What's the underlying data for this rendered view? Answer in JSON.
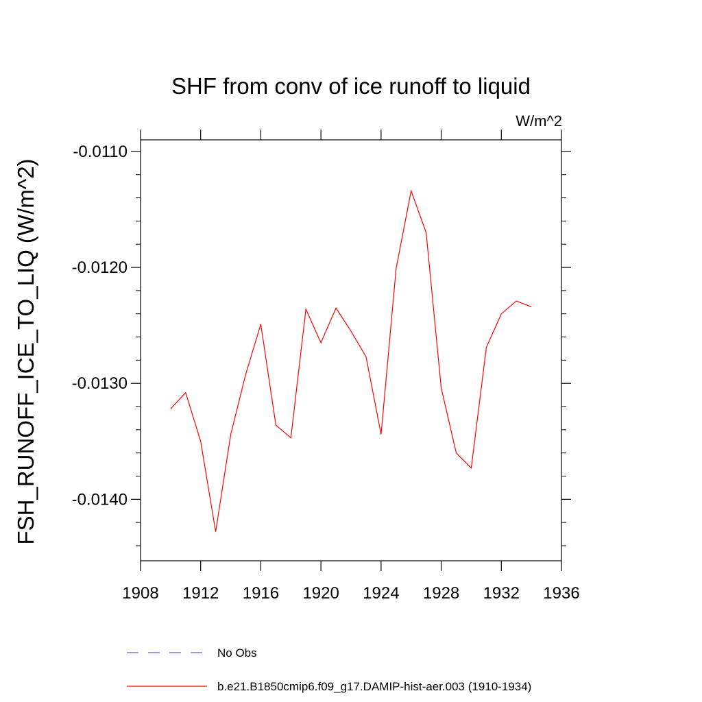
{
  "chart_data": {
    "type": "line",
    "title": "SHF from conv of ice runoff to liquid",
    "units_label": "W/m^2",
    "ylabel": "FSH_RUNOFF_ICE_TO_LIQ  (W/m^2)",
    "xlabel": "",
    "xlim": [
      1908,
      1936
    ],
    "ylim": [
      -0.01453,
      -0.0109
    ],
    "x_ticks": [
      1908,
      1912,
      1916,
      1920,
      1924,
      1928,
      1932,
      1936
    ],
    "x_tick_labels": [
      "1908",
      "1912",
      "1916",
      "1920",
      "1924",
      "1928",
      "1932",
      "1936"
    ],
    "y_ticks": [
      -0.011,
      -0.012,
      -0.013,
      -0.014
    ],
    "y_tick_labels": [
      "-0.0110",
      "-0.0120",
      "-0.0130",
      "-0.0140"
    ],
    "grid": false,
    "legend_position": "bottom",
    "series": [
      {
        "name": "b.e21.B1850cmip6.f09_g17.DAMIP-hist-aer.003 (1910-1934)",
        "color": "#ff0000",
        "style": "solid",
        "x": [
          1910,
          1911,
          1912,
          1913,
          1914,
          1915,
          1916,
          1917,
          1918,
          1919,
          1920,
          1921,
          1922,
          1923,
          1924,
          1925,
          1926,
          1927,
          1928,
          1929,
          1930,
          1931,
          1932,
          1933,
          1934
        ],
        "values": [
          -0.01322,
          -0.01308,
          -0.0135,
          -0.01428,
          -0.01344,
          -0.01292,
          -0.01249,
          -0.01336,
          -0.01347,
          -0.01236,
          -0.01265,
          -0.01235,
          -0.01255,
          -0.01277,
          -0.01344,
          -0.01201,
          -0.01134,
          -0.0117,
          -0.01304,
          -0.0136,
          -0.01373,
          -0.01269,
          -0.0124,
          -0.01229,
          -0.01234
        ]
      }
    ],
    "legend": [
      {
        "label": "No Obs",
        "color": "#6a5acd",
        "style": "dashed"
      },
      {
        "label": "b.e21.B1850cmip6.f09_g17.DAMIP-hist-aer.003 (1910-1934)",
        "color": "#ff0000",
        "style": "solid"
      }
    ]
  }
}
